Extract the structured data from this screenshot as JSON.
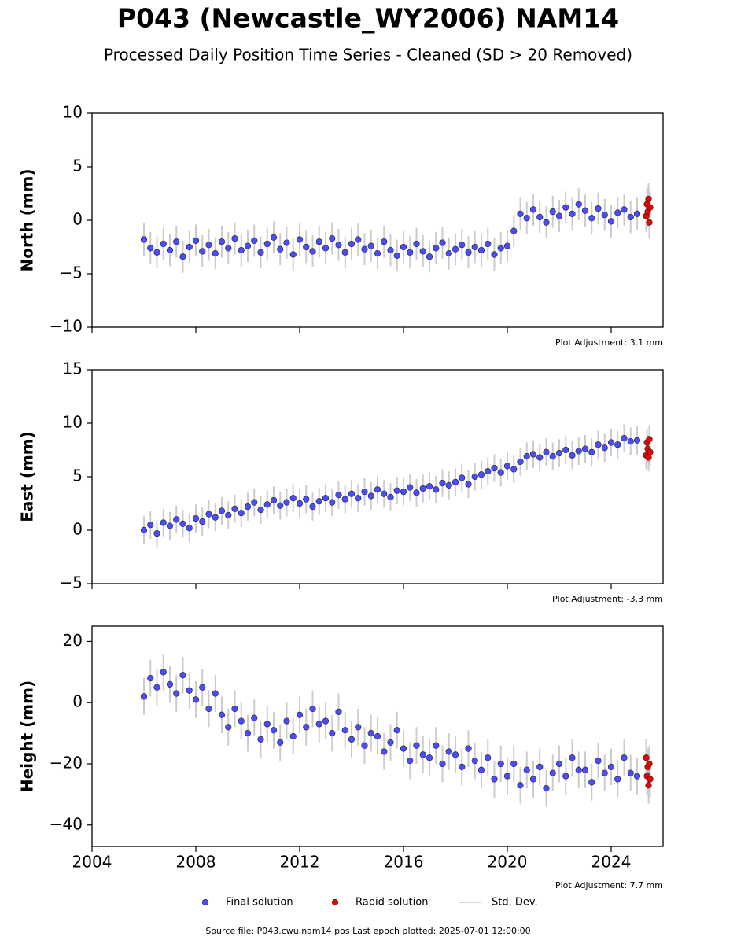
{
  "title": "P043 (Newcastle_WY2006) NAM14",
  "subtitle": "Processed Daily Position Time Series - Cleaned (SD > 20 Removed)",
  "source": "Source file: P043.cwu.nam14.pos  Last epoch plotted: 2025-07-01 12:00:00",
  "legend": [
    {
      "name": "Final solution",
      "color": "#4b4bff"
    },
    {
      "name": "Rapid solution",
      "color": "#ee0000"
    },
    {
      "name": "Std. Dev.",
      "color": "#c8c8c8"
    }
  ],
  "chart_data": [
    {
      "type": "scatter",
      "ylabel": "North (mm)",
      "annotation": "Plot Adjustment: 3.1 mm",
      "xlim": [
        2004,
        2026
      ],
      "xticks": [
        2004,
        2008,
        2012,
        2016,
        2020,
        2024
      ],
      "ylim": [
        -10,
        10
      ],
      "yticks": [
        {
          "value": -10,
          "label": "−10"
        },
        {
          "value": -5,
          "label": "−5"
        },
        0,
        5,
        10
      ],
      "std_dev": 1.5,
      "series": [
        {
          "color": "#4b4bff",
          "x": [
            2006,
            2006.25,
            2006.5,
            2006.75,
            2007,
            2007.25,
            2007.5,
            2007.75,
            2008,
            2008.25,
            2008.5,
            2008.75,
            2009,
            2009.25,
            2009.5,
            2009.75,
            2010,
            2010.25,
            2010.5,
            2010.75,
            2011,
            2011.25,
            2011.5,
            2011.75,
            2012,
            2012.25,
            2012.5,
            2012.75,
            2013,
            2013.25,
            2013.5,
            2013.75,
            2014,
            2014.25,
            2014.5,
            2014.75,
            2015,
            2015.25,
            2015.5,
            2015.75,
            2016,
            2016.25,
            2016.5,
            2016.75,
            2017,
            2017.25,
            2017.5,
            2017.75,
            2018,
            2018.25,
            2018.5,
            2018.75,
            2019,
            2019.25,
            2019.5,
            2019.75,
            2020,
            2020.25,
            2020.5,
            2020.75,
            2021,
            2021.25,
            2021.5,
            2021.75,
            2022,
            2022.25,
            2022.5,
            2022.75,
            2023,
            2023.25,
            2023.5,
            2023.75,
            2024,
            2024.25,
            2024.5,
            2024.75,
            2025
          ],
          "values": [
            -1.8,
            -2.6,
            -3.0,
            -2.2,
            -2.8,
            -2.0,
            -3.4,
            -2.5,
            -1.9,
            -2.9,
            -2.3,
            -3.1,
            -2.0,
            -2.6,
            -1.7,
            -2.8,
            -2.4,
            -1.9,
            -3.0,
            -2.2,
            -1.6,
            -2.7,
            -2.1,
            -3.2,
            -1.8,
            -2.5,
            -2.9,
            -2.0,
            -2.6,
            -1.7,
            -2.3,
            -3.0,
            -2.2,
            -1.8,
            -2.7,
            -2.4,
            -3.1,
            -2.0,
            -2.8,
            -3.3,
            -2.5,
            -3.0,
            -2.2,
            -2.9,
            -3.4,
            -2.6,
            -2.1,
            -3.1,
            -2.7,
            -2.3,
            -3.0,
            -2.5,
            -2.8,
            -2.2,
            -3.2,
            -2.6,
            -2.4,
            -1.0,
            0.6,
            0.2,
            1.0,
            0.3,
            -0.2,
            0.8,
            0.4,
            1.2,
            0.6,
            1.5,
            0.9,
            0.2,
            1.1,
            0.5,
            -0.1,
            0.7,
            1.0,
            0.3,
            0.6
          ]
        },
        {
          "color": "#ee0000",
          "x": [
            2025.35,
            2025.38,
            2025.41,
            2025.44,
            2025.47,
            2025.5
          ],
          "values": [
            0.4,
            1.5,
            0.8,
            2.0,
            -0.2,
            1.2
          ]
        }
      ]
    },
    {
      "type": "scatter",
      "ylabel": "East (mm)",
      "annotation": "Plot Adjustment: -3.3 mm",
      "xlim": [
        2004,
        2026
      ],
      "xticks": [
        2004,
        2008,
        2012,
        2016,
        2020,
        2024
      ],
      "ylim": [
        -5,
        15
      ],
      "yticks": [
        {
          "value": -5,
          "label": "−5"
        },
        0,
        5,
        10,
        15
      ],
      "std_dev": 1.3,
      "series": [
        {
          "color": "#4b4bff",
          "x": [
            2006,
            2006.25,
            2006.5,
            2006.75,
            2007,
            2007.25,
            2007.5,
            2007.75,
            2008,
            2008.25,
            2008.5,
            2008.75,
            2009,
            2009.25,
            2009.5,
            2009.75,
            2010,
            2010.25,
            2010.5,
            2010.75,
            2011,
            2011.25,
            2011.5,
            2011.75,
            2012,
            2012.25,
            2012.5,
            2012.75,
            2013,
            2013.25,
            2013.5,
            2013.75,
            2014,
            2014.25,
            2014.5,
            2014.75,
            2015,
            2015.25,
            2015.5,
            2015.75,
            2016,
            2016.25,
            2016.5,
            2016.75,
            2017,
            2017.25,
            2017.5,
            2017.75,
            2018,
            2018.25,
            2018.5,
            2018.75,
            2019,
            2019.25,
            2019.5,
            2019.75,
            2020,
            2020.25,
            2020.5,
            2020.75,
            2021,
            2021.25,
            2021.5,
            2021.75,
            2022,
            2022.25,
            2022.5,
            2022.75,
            2023,
            2023.25,
            2023.5,
            2023.75,
            2024,
            2024.25,
            2024.5,
            2024.75,
            2025
          ],
          "values": [
            0.0,
            0.5,
            -0.3,
            0.7,
            0.4,
            1.0,
            0.6,
            0.2,
            1.1,
            0.8,
            1.5,
            1.2,
            1.8,
            1.4,
            2.0,
            1.6,
            2.2,
            2.6,
            1.9,
            2.4,
            2.8,
            2.3,
            2.6,
            3.0,
            2.5,
            2.9,
            2.2,
            2.7,
            3.0,
            2.6,
            3.3,
            2.9,
            3.4,
            3.0,
            3.6,
            3.2,
            3.8,
            3.4,
            3.1,
            3.7,
            3.6,
            4.0,
            3.5,
            3.9,
            4.1,
            3.8,
            4.4,
            4.2,
            4.5,
            4.9,
            4.3,
            5.0,
            5.2,
            5.5,
            5.8,
            5.4,
            6.0,
            5.7,
            6.4,
            6.9,
            7.1,
            6.8,
            7.3,
            6.9,
            7.2,
            7.5,
            7.0,
            7.4,
            7.6,
            7.3,
            8.0,
            7.7,
            8.2,
            8.0,
            8.6,
            8.3,
            8.4
          ]
        },
        {
          "color": "#ee0000",
          "x": [
            2025.35,
            2025.38,
            2025.41,
            2025.44,
            2025.47,
            2025.5
          ],
          "values": [
            7.0,
            8.2,
            7.6,
            6.8,
            8.5,
            7.3
          ]
        }
      ]
    },
    {
      "type": "scatter",
      "ylabel": "Height (mm)",
      "annotation": "Plot Adjustment: 7.7 mm",
      "xlim": [
        2004,
        2026
      ],
      "xticks": [
        2004,
        2008,
        2012,
        2016,
        2020,
        2024
      ],
      "ylim": [
        -47,
        25
      ],
      "yticks": [
        {
          "value": -40,
          "label": "−40"
        },
        {
          "value": -20,
          "label": "−20"
        },
        0,
        20
      ],
      "std_dev": 6,
      "series": [
        {
          "color": "#4b4bff",
          "x": [
            2006,
            2006.25,
            2006.5,
            2006.75,
            2007,
            2007.25,
            2007.5,
            2007.75,
            2008,
            2008.25,
            2008.5,
            2008.75,
            2009,
            2009.25,
            2009.5,
            2009.75,
            2010,
            2010.25,
            2010.5,
            2010.75,
            2011,
            2011.25,
            2011.5,
            2011.75,
            2012,
            2012.25,
            2012.5,
            2012.75,
            2013,
            2013.25,
            2013.5,
            2013.75,
            2014,
            2014.25,
            2014.5,
            2014.75,
            2015,
            2015.25,
            2015.5,
            2015.75,
            2016,
            2016.25,
            2016.5,
            2016.75,
            2017,
            2017.25,
            2017.5,
            2017.75,
            2018,
            2018.25,
            2018.5,
            2018.75,
            2019,
            2019.25,
            2019.5,
            2019.75,
            2020,
            2020.25,
            2020.5,
            2020.75,
            2021,
            2021.25,
            2021.5,
            2021.75,
            2022,
            2022.25,
            2022.5,
            2022.75,
            2023,
            2023.25,
            2023.5,
            2023.75,
            2024,
            2024.25,
            2024.5,
            2024.75,
            2025
          ],
          "values": [
            2,
            8,
            5,
            10,
            6,
            3,
            9,
            4,
            1,
            5,
            -2,
            3,
            -4,
            -8,
            -2,
            -6,
            -10,
            -5,
            -12,
            -7,
            -9,
            -13,
            -6,
            -11,
            -4,
            -8,
            -2,
            -7,
            -6,
            -10,
            -3,
            -9,
            -12,
            -8,
            -14,
            -10,
            -11,
            -16,
            -13,
            -9,
            -15,
            -19,
            -14,
            -17,
            -18,
            -14,
            -20,
            -16,
            -17,
            -21,
            -15,
            -19,
            -22,
            -18,
            -25,
            -20,
            -24,
            -20,
            -27,
            -22,
            -25,
            -21,
            -28,
            -23,
            -20,
            -24,
            -18,
            -22,
            -22,
            -26,
            -19,
            -23,
            -21,
            -25,
            -18,
            -23,
            -24
          ]
        },
        {
          "color": "#ee0000",
          "x": [
            2025.35,
            2025.38,
            2025.41,
            2025.44,
            2025.47,
            2025.5
          ],
          "values": [
            -18,
            -24,
            -21,
            -27,
            -20,
            -25
          ]
        }
      ]
    }
  ]
}
